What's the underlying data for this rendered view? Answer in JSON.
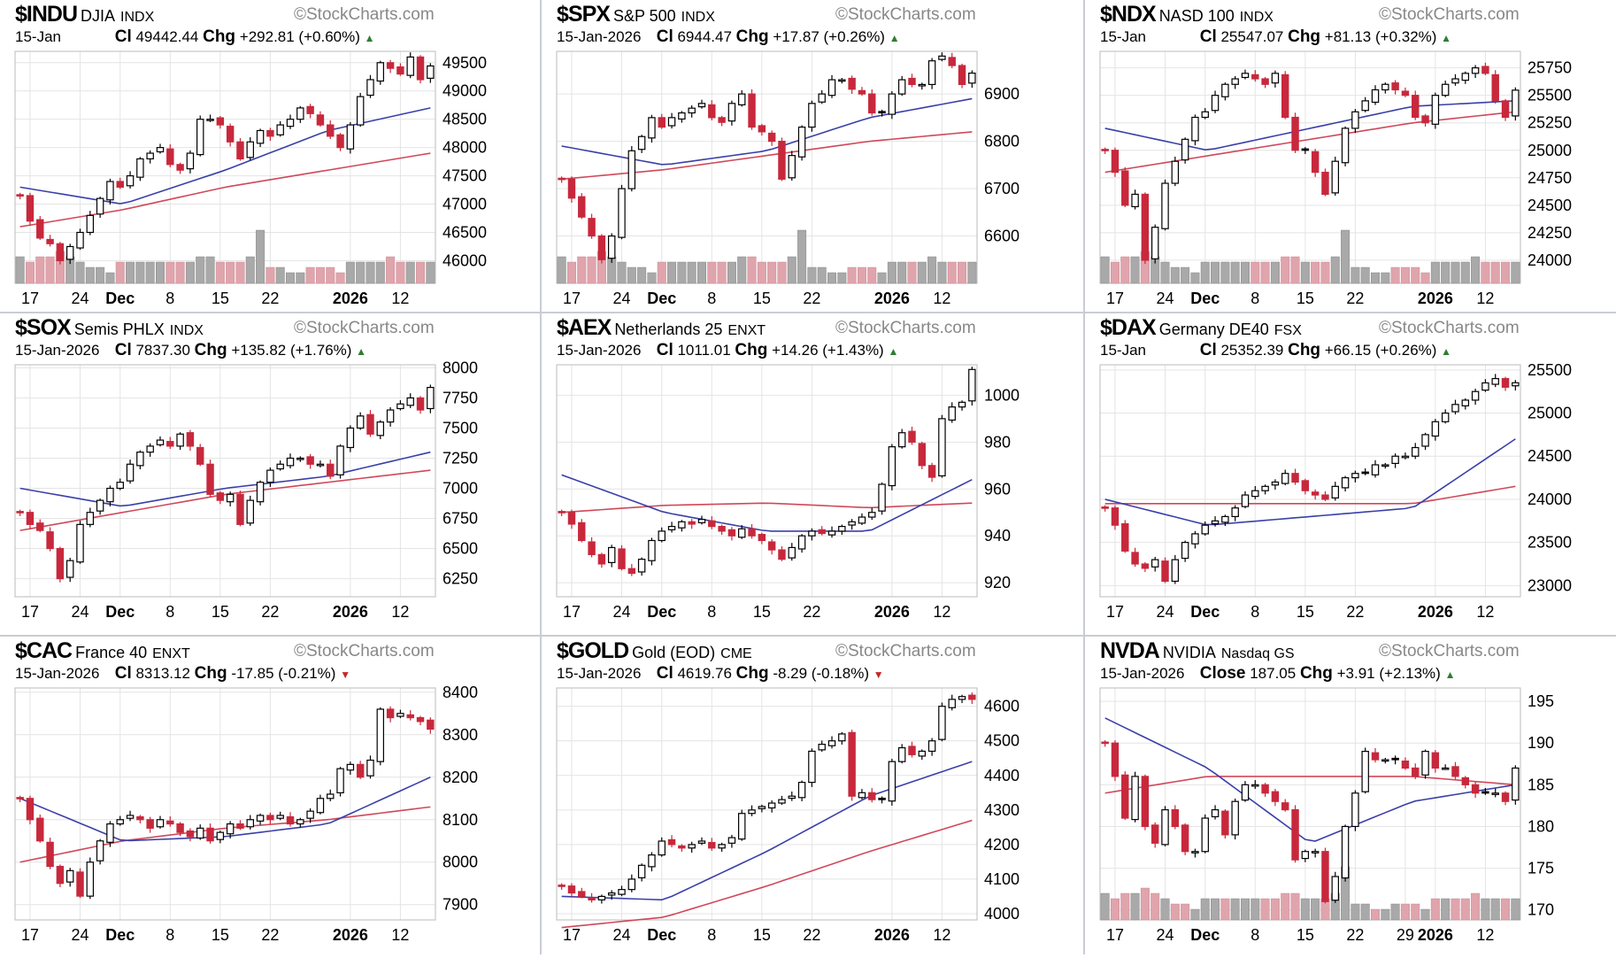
{
  "watermark": "©StockCharts.com",
  "colors": {
    "up": "#000000",
    "down": "#c8283c",
    "ma_fast": "#3a3fa8",
    "ma_slow": "#d0485a",
    "vol_up": "#a9a9a9",
    "vol_down": "#e0a4ac",
    "grid": "#e4e4e4"
  },
  "x_ticks": {
    "labels": [
      "17",
      "24",
      "Dec",
      "8",
      "15",
      "22",
      "2026",
      "12"
    ],
    "index": [
      1,
      6,
      10,
      15,
      20,
      25,
      33,
      38
    ]
  },
  "chart_data": [
    {
      "type": "candlestick",
      "symbol": "$INDU",
      "name": "DJIA",
      "exchange": "INDX",
      "date": "15-Jan",
      "close_label": "Cl",
      "close": "49442.44",
      "chg_label": "Chg",
      "chg": "+292.81 (+0.60%)",
      "dir": "up",
      "yticks": [
        46000,
        46500,
        47000,
        47500,
        48000,
        48500,
        49000,
        49500
      ],
      "ylim": [
        45600,
        49700
      ],
      "volume": true,
      "closes": [
        47150,
        46700,
        46400,
        46300,
        46000,
        46250,
        46500,
        46800,
        47100,
        47400,
        47300,
        47500,
        47800,
        47900,
        48000,
        47700,
        47600,
        47900,
        48500,
        48500,
        48400,
        48100,
        47800,
        48100,
        48300,
        48200,
        48400,
        48500,
        48700,
        48600,
        48400,
        48200,
        48000,
        48400,
        48900,
        49200,
        49500,
        49400,
        49300,
        49600,
        49200,
        49442
      ],
      "ma_fast": [
        47300,
        47000,
        47600,
        48300,
        48700
      ],
      "ma_slow": [
        46600,
        46900,
        47300,
        47600,
        47900
      ]
    },
    {
      "type": "candlestick",
      "symbol": "$SPX",
      "name": "S&P 500",
      "exchange": "INDX",
      "date": "15-Jan-2026",
      "close_label": "Cl",
      "close": "6944.47",
      "chg_label": "Chg",
      "chg": "+17.87 (+0.26%)",
      "dir": "up",
      "yticks": [
        6600,
        6700,
        6800,
        6900
      ],
      "ylim": [
        6500,
        6990
      ],
      "volume": true,
      "closes": [
        6720,
        6680,
        6640,
        6600,
        6550,
        6600,
        6700,
        6780,
        6810,
        6850,
        6830,
        6850,
        6860,
        6870,
        6880,
        6850,
        6840,
        6880,
        6900,
        6830,
        6820,
        6800,
        6720,
        6770,
        6830,
        6880,
        6900,
        6930,
        6930,
        6910,
        6900,
        6860,
        6860,
        6900,
        6930,
        6920,
        6920,
        6970,
        6980,
        6960,
        6920,
        6944
      ],
      "ma_fast": [
        6790,
        6750,
        6780,
        6850,
        6890
      ],
      "ma_slow": [
        6720,
        6740,
        6770,
        6800,
        6820
      ]
    },
    {
      "type": "candlestick",
      "symbol": "$NDX",
      "name": "NASD 100",
      "exchange": "INDX",
      "date": "15-Jan",
      "close_label": "Cl",
      "close": "25547.07",
      "chg_label": "Chg",
      "chg": "+81.13 (+0.32%)",
      "dir": "up",
      "yticks": [
        24000,
        24250,
        24500,
        24750,
        25000,
        25250,
        25500,
        25750
      ],
      "ylim": [
        23790,
        25900
      ],
      "volume": true,
      "closes": [
        25000,
        24800,
        24500,
        24600,
        24000,
        24300,
        24700,
        24900,
        25100,
        25300,
        25350,
        25500,
        25600,
        25650,
        25700,
        25650,
        25600,
        25700,
        25300,
        25000,
        25000,
        24800,
        24600,
        24900,
        25200,
        25350,
        25450,
        25550,
        25600,
        25550,
        25500,
        25300,
        25250,
        25500,
        25600,
        25650,
        25700,
        25750,
        25700,
        25450,
        25300,
        25547
      ],
      "ma_fast": [
        25200,
        25000,
        25200,
        25400,
        25450
      ],
      "ma_slow": [
        24800,
        24950,
        25100,
        25250,
        25350
      ]
    },
    {
      "type": "candlestick",
      "symbol": "$SOX",
      "name": "Semis PHLX",
      "exchange": "INDX",
      "date": "15-Jan-2026",
      "close_label": "Cl",
      "close": "7837.30",
      "chg_label": "Chg",
      "chg": "+135.82 (+1.76%)",
      "dir": "up",
      "yticks": [
        6250,
        6500,
        6750,
        7000,
        7250,
        7500,
        7750,
        8000
      ],
      "ylim": [
        6100,
        8025
      ],
      "volume": false,
      "closes": [
        6800,
        6700,
        6650,
        6500,
        6250,
        6400,
        6700,
        6800,
        6900,
        7000,
        7050,
        7200,
        7300,
        7350,
        7400,
        7350,
        7450,
        7350,
        7200,
        6950,
        6900,
        6950,
        6700,
        6900,
        7050,
        7150,
        7200,
        7250,
        7250,
        7200,
        7200,
        7100,
        7350,
        7500,
        7600,
        7450,
        7550,
        7650,
        7700,
        7750,
        7650,
        7837
      ],
      "ma_fast": [
        7000,
        6850,
        7000,
        7100,
        7300
      ],
      "ma_slow": [
        6650,
        6800,
        6950,
        7050,
        7150
      ]
    },
    {
      "type": "candlestick",
      "symbol": "$AEX",
      "name": "Netherlands 25",
      "exchange": "ENXT",
      "date": "15-Jan-2026",
      "close_label": "Cl",
      "close": "1011.01",
      "chg_label": "Chg",
      "chg": "+14.26 (+1.43%)",
      "dir": "up",
      "yticks": [
        920,
        940,
        960,
        980,
        1000
      ],
      "ylim": [
        914,
        1013
      ],
      "volume": false,
      "closes": [
        950,
        945,
        938,
        932,
        928,
        935,
        926,
        924,
        930,
        938,
        942,
        944,
        946,
        945,
        947,
        944,
        942,
        940,
        943,
        940,
        938,
        934,
        930,
        935,
        940,
        942,
        941,
        942,
        944,
        946,
        948,
        950,
        962,
        978,
        984,
        980,
        970,
        965,
        990,
        995,
        997,
        1011
      ],
      "ma_fast": [
        966,
        950,
        942,
        942,
        964
      ],
      "ma_slow": [
        950,
        953,
        954,
        952,
        954
      ]
    },
    {
      "type": "candlestick",
      "symbol": "$DAX",
      "name": "Germany DE40",
      "exchange": "FSX",
      "date": "15-Jan",
      "close_label": "Cl",
      "close": "25352.39",
      "chg_label": "Chg",
      "chg": "+66.15 (+0.26%)",
      "dir": "up",
      "yticks": [
        23000,
        23500,
        24000,
        24500,
        25000,
        25500
      ],
      "ylim": [
        22870,
        25560
      ],
      "volume": false,
      "closes": [
        23900,
        23700,
        23400,
        23250,
        23200,
        23300,
        23050,
        23300,
        23500,
        23600,
        23700,
        23750,
        23800,
        23900,
        24050,
        24100,
        24150,
        24200,
        24300,
        24200,
        24100,
        24050,
        24000,
        24150,
        24250,
        24300,
        24300,
        24400,
        24400,
        24500,
        24500,
        24600,
        24750,
        24900,
        25000,
        25100,
        25150,
        25250,
        25350,
        25400,
        25300,
        25352
      ],
      "ma_fast": [
        24000,
        23700,
        23800,
        23900,
        24700
      ],
      "ma_slow": [
        23950,
        23950,
        23950,
        23950,
        24150
      ]
    },
    {
      "type": "candlestick",
      "symbol": "$CAC",
      "name": "France 40",
      "exchange": "ENXT",
      "date": "15-Jan-2026",
      "close_label": "Cl",
      "close": "8313.12",
      "chg_label": "Chg",
      "chg": "-17.85 (-0.21%)",
      "dir": "down",
      "yticks": [
        7900,
        8000,
        8100,
        8200,
        8300,
        8400
      ],
      "ylim": [
        7864,
        8410
      ],
      "volume": false,
      "closes": [
        8150,
        8100,
        8050,
        7990,
        7950,
        7980,
        7920,
        8000,
        8050,
        8090,
        8100,
        8110,
        8100,
        8080,
        8100,
        8090,
        8070,
        8060,
        8080,
        8050,
        8070,
        8090,
        8080,
        8100,
        8110,
        8100,
        8110,
        8090,
        8100,
        8120,
        8150,
        8160,
        8220,
        8230,
        8200,
        8240,
        8360,
        8340,
        8350,
        8340,
        8331,
        8313
      ],
      "ma_fast": [
        8150,
        8050,
        8060,
        8090,
        8200
      ],
      "ma_slow": [
        8000,
        8050,
        8080,
        8100,
        8130
      ]
    },
    {
      "type": "candlestick",
      "symbol": "$GOLD",
      "name": "Gold (EOD)",
      "exchange": "CME",
      "date": "15-Jan-2026",
      "close_label": "Cl",
      "close": "4619.76",
      "chg_label": "Chg",
      "chg": "-8.29 (-0.18%)",
      "dir": "down",
      "yticks": [
        4000,
        4100,
        4200,
        4300,
        4400,
        4500,
        4600
      ],
      "ylim": [
        3982,
        4653
      ],
      "volume": false,
      "closes": [
        4080,
        4060,
        4050,
        4040,
        4050,
        4060,
        4070,
        4100,
        4140,
        4170,
        4210,
        4200,
        4190,
        4200,
        4210,
        4190,
        4200,
        4220,
        4290,
        4300,
        4310,
        4320,
        4330,
        4340,
        4380,
        4470,
        4490,
        4500,
        4520,
        4340,
        4350,
        4330,
        4330,
        4440,
        4480,
        4460,
        4470,
        4500,
        4600,
        4620,
        4628,
        4620
      ],
      "ma_fast": [
        4050,
        4040,
        4180,
        4340,
        4440
      ],
      "ma_slow": [
        3960,
        3990,
        4080,
        4180,
        4270
      ]
    },
    {
      "type": "candlestick",
      "symbol": "NVDA",
      "name": "NVIDIA",
      "exchange": "Nasdaq GS",
      "date": "15-Jan-2026",
      "close_label": "Close",
      "close": "187.05",
      "chg_label": "Chg",
      "chg": "+3.91 (+2.13%)",
      "dir": "up",
      "yticks": [
        170,
        175,
        180,
        185,
        190,
        195
      ],
      "ylim": [
        168.8,
        196.6
      ],
      "volume": true,
      "extra_tick": {
        "label": "29",
        "index": 30
      },
      "closes": [
        190,
        186,
        181,
        186,
        180,
        178,
        182,
        180,
        177,
        177,
        181,
        182,
        179,
        183,
        185,
        185,
        184,
        183,
        182,
        176,
        177,
        177,
        171,
        174,
        180,
        184,
        189,
        188,
        188,
        188,
        187,
        186,
        189,
        187,
        187,
        186,
        185,
        184,
        184,
        184,
        183,
        187
      ],
      "ma_fast": [
        193,
        187,
        178,
        183,
        185
      ],
      "ma_slow": [
        184,
        186,
        186,
        186,
        185
      ]
    }
  ],
  "volumes": [
    5,
    4,
    5,
    5,
    6,
    5,
    4,
    3,
    3,
    2,
    4,
    4,
    4,
    4,
    4,
    4,
    4,
    4,
    5,
    5,
    4,
    4,
    4,
    5,
    10,
    3,
    3,
    2,
    2,
    3,
    3,
    3,
    2,
    4,
    4,
    4,
    4,
    5,
    4,
    4,
    4,
    4
  ]
}
